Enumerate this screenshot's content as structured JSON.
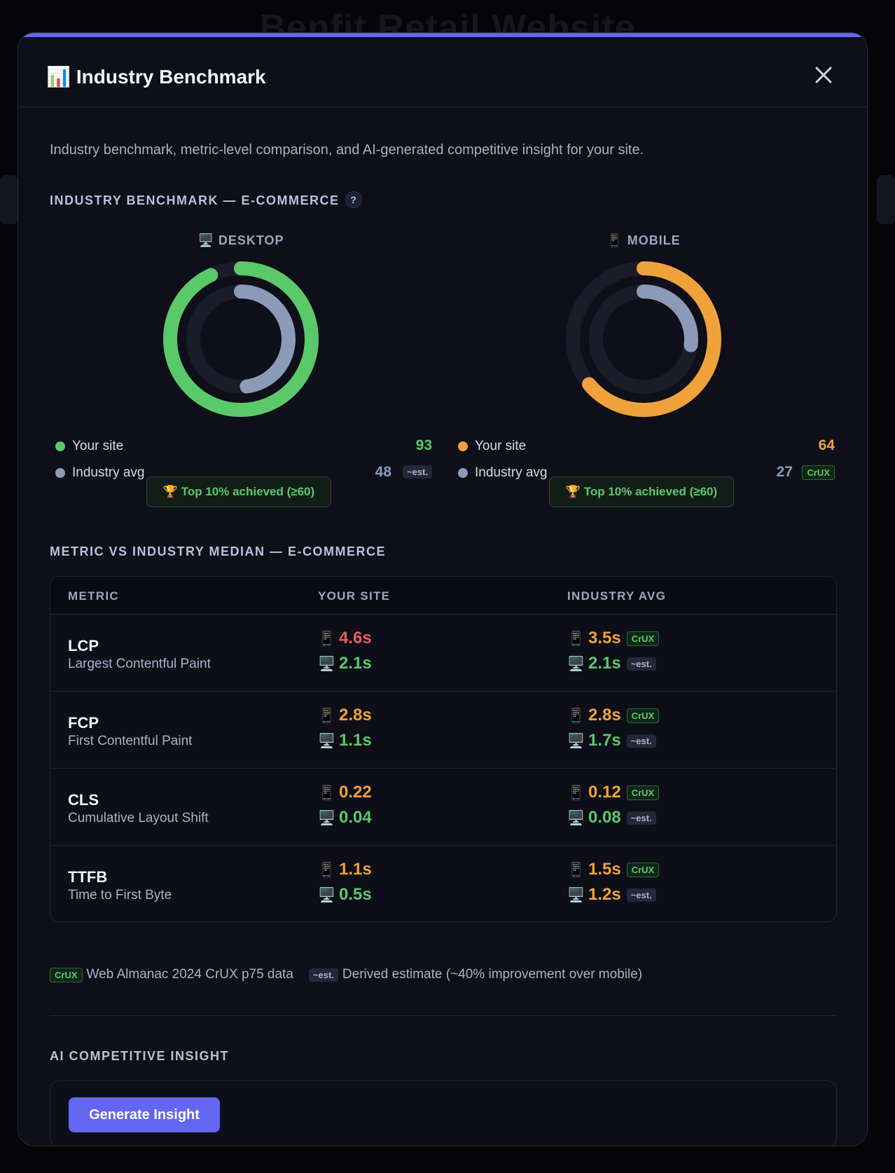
{
  "backdrop": {
    "title": "Benfit Retail Website"
  },
  "modal": {
    "icon": "📊",
    "title": "Industry Benchmark",
    "intro": "Industry benchmark, metric-level comparison, and AI-generated competitive insight for your site.",
    "benchmark_section_title": "INDUSTRY BENCHMARK — E-COMMERCE",
    "help_label": "?",
    "metric_section_title": "METRIC VS INDUSTRY MEDIAN — E-COMMERCE",
    "insight_section_title": "AI COMPETITIVE INSIGHT",
    "generate_button": "Generate Insight"
  },
  "devices": [
    {
      "title": "🖥️ DESKTOP",
      "your_label": "Your site",
      "your_score": "93",
      "your_fraction": 0.93,
      "your_color": "#5ac96a",
      "avg_label": "Industry avg",
      "avg_score": "48",
      "avg_fraction": 0.48,
      "avg_color": "#8b9ab7",
      "avg_tag": "~est.",
      "avg_tag_type": "est",
      "badge": "🏆 Top 10% achieved (≥60)"
    },
    {
      "title": "📱 MOBILE",
      "your_label": "Your site",
      "your_score": "64",
      "your_fraction": 0.64,
      "your_color": "#f0a23a",
      "avg_label": "Industry avg",
      "avg_score": "27",
      "avg_fraction": 0.27,
      "avg_color": "#8b9ab7",
      "avg_tag": "CrUX",
      "avg_tag_type": "crux",
      "badge": "🏆 Top 10% achieved (≥60)"
    }
  ],
  "table": {
    "headers": [
      "METRIC",
      "YOUR SITE",
      "INDUSTRY AVG"
    ],
    "mobile_icon": "📱",
    "desktop_icon": "🖥️",
    "rows": [
      {
        "code": "LCP",
        "name": "Largest Contentful Paint",
        "site_mobile": "4.6s",
        "site_mobile_color": "red",
        "site_desktop": "2.1s",
        "site_desktop_color": "green",
        "avg_mobile": "3.5s",
        "avg_mobile_color": "orange",
        "avg_mobile_tag": "CrUX",
        "avg_desktop": "2.1s",
        "avg_desktop_color": "green",
        "avg_desktop_tag": "~est."
      },
      {
        "code": "FCP",
        "name": "First Contentful Paint",
        "site_mobile": "2.8s",
        "site_mobile_color": "orange",
        "site_desktop": "1.1s",
        "site_desktop_color": "green",
        "avg_mobile": "2.8s",
        "avg_mobile_color": "orange",
        "avg_mobile_tag": "CrUX",
        "avg_desktop": "1.7s",
        "avg_desktop_color": "green",
        "avg_desktop_tag": "~est."
      },
      {
        "code": "CLS",
        "name": "Cumulative Layout Shift",
        "site_mobile": "0.22",
        "site_mobile_color": "orange",
        "site_desktop": "0.04",
        "site_desktop_color": "green",
        "avg_mobile": "0.12",
        "avg_mobile_color": "orange",
        "avg_mobile_tag": "CrUX",
        "avg_desktop": "0.08",
        "avg_desktop_color": "green",
        "avg_desktop_tag": "~est."
      },
      {
        "code": "TTFB",
        "name": "Time to First Byte",
        "site_mobile": "1.1s",
        "site_mobile_color": "orange",
        "site_desktop": "0.5s",
        "site_desktop_color": "green",
        "avg_mobile": "1.5s",
        "avg_mobile_color": "orange",
        "avg_mobile_tag": "CrUX",
        "avg_desktop": "1.2s",
        "avg_desktop_color": "orange",
        "avg_desktop_tag": "~est."
      }
    ]
  },
  "footnote": {
    "crux_tag": "CrUX",
    "crux_text": "Web Almanac 2024 CrUX p75 data",
    "est_tag": "~est.",
    "est_text": "Derived estimate (~40% improvement over mobile)"
  }
}
